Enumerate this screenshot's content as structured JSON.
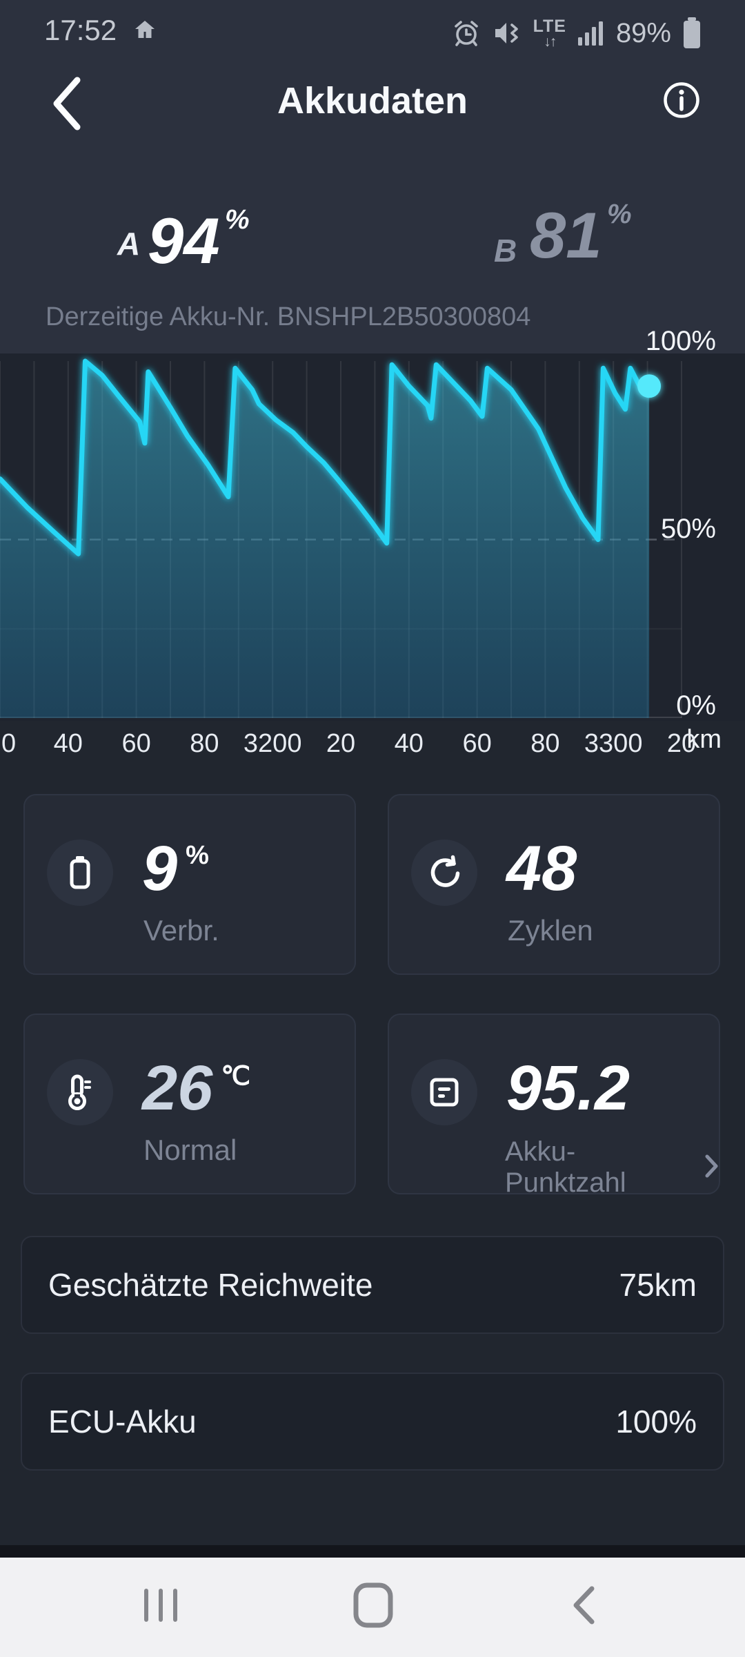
{
  "status_bar": {
    "time": "17:52",
    "battery_percent": "89%",
    "icons": [
      "home",
      "alarm",
      "vibrate-mute",
      "lte",
      "signal-strength",
      "battery"
    ]
  },
  "header": {
    "title": "Akkudaten"
  },
  "soc": {
    "a_label": "A",
    "a_value": "94",
    "a_unit": "%",
    "b_label": "B",
    "b_value": "81",
    "b_unit": "%"
  },
  "chart": {
    "subtitle": "Derzeitige Akku-Nr. BNSHPL2B50300804"
  },
  "chart_data": {
    "type": "area",
    "title": "Derzeitige Akku-Nr. BNSHPL2B50300804",
    "xlabel": "km",
    "ylabel": "%",
    "xlim": [
      3120,
      3320
    ],
    "ylim": [
      0,
      100
    ],
    "grid_km_step": 10,
    "x_ticks_km": [
      3120,
      3140,
      3160,
      3180,
      3200,
      3220,
      3240,
      3260,
      3280,
      3300,
      3320
    ],
    "x_tick_labels": [
      "0",
      "40",
      "60",
      "80",
      "3200",
      "20",
      "40",
      "60",
      "80",
      "3300",
      "20"
    ],
    "y_ticks": [
      100,
      50,
      0
    ],
    "y_tick_labels": [
      "100%",
      "50%",
      "0%"
    ],
    "dashed_guide_pct": 50,
    "legend": "none",
    "line_color": "#26d6f5",
    "series": [
      {
        "name": "battery-state-of-charge",
        "points": [
          [
            3120,
            67
          ],
          [
            3128,
            59
          ],
          [
            3136,
            52
          ],
          [
            3143,
            46
          ],
          [
            3145,
            100
          ],
          [
            3150,
            96
          ],
          [
            3155,
            90
          ],
          [
            3161,
            83
          ],
          [
            3162.5,
            77
          ],
          [
            3163.5,
            97
          ],
          [
            3170,
            87
          ],
          [
            3175,
            79
          ],
          [
            3181,
            71
          ],
          [
            3187,
            62
          ],
          [
            3189,
            98
          ],
          [
            3194,
            92
          ],
          [
            3196,
            88
          ],
          [
            3201,
            83.5
          ],
          [
            3206,
            80
          ],
          [
            3210,
            76
          ],
          [
            3215,
            71.5
          ],
          [
            3219,
            67
          ],
          [
            3225,
            60
          ],
          [
            3229,
            55
          ],
          [
            3233.5,
            49
          ],
          [
            3235,
            99
          ],
          [
            3240,
            93
          ],
          [
            3245.5,
            87.5
          ],
          [
            3246.5,
            84
          ],
          [
            3248,
            99
          ],
          [
            3253,
            94
          ],
          [
            3258,
            89
          ],
          [
            3261.5,
            84.5
          ],
          [
            3263,
            98
          ],
          [
            3270,
            92
          ],
          [
            3278,
            81
          ],
          [
            3286,
            64.5
          ],
          [
            3291,
            56
          ],
          [
            3295.5,
            50
          ],
          [
            3297,
            98
          ],
          [
            3300.5,
            91
          ],
          [
            3303.5,
            86.5
          ],
          [
            3305,
            98
          ],
          [
            3308.5,
            91.5
          ],
          [
            3310.5,
            93
          ]
        ]
      }
    ],
    "end_dot": [
      3310.5,
      93
    ]
  },
  "cards": [
    {
      "icon": "battery-consumption",
      "value": "9",
      "unit": "%",
      "label": "Verbr."
    },
    {
      "icon": "charge-cycles",
      "value": "48",
      "unit": "",
      "label": "Zyklen"
    },
    {
      "icon": "thermometer",
      "value": "26",
      "unit": "℃",
      "label": "Normal"
    },
    {
      "icon": "battery-score",
      "value": "95.2",
      "unit": "",
      "label": "Akku-Punktzahl"
    }
  ],
  "rows": [
    {
      "label": "Geschätzte Reichweite",
      "value": "75km"
    },
    {
      "label": "ECU-Akku",
      "value": "100%"
    }
  ],
  "nav_bar": {
    "icons": [
      "recents",
      "home",
      "back"
    ]
  },
  "colors": {
    "accent_cyan": "#26d6f5",
    "soc_b_gray": "#8b92a2",
    "temp_value": "#ccd5e2",
    "background_top": "#2c313e",
    "chart_panel": "#1f242e",
    "card_bg": "#262b36",
    "nav_bar_bg": "#f1f1f3"
  }
}
